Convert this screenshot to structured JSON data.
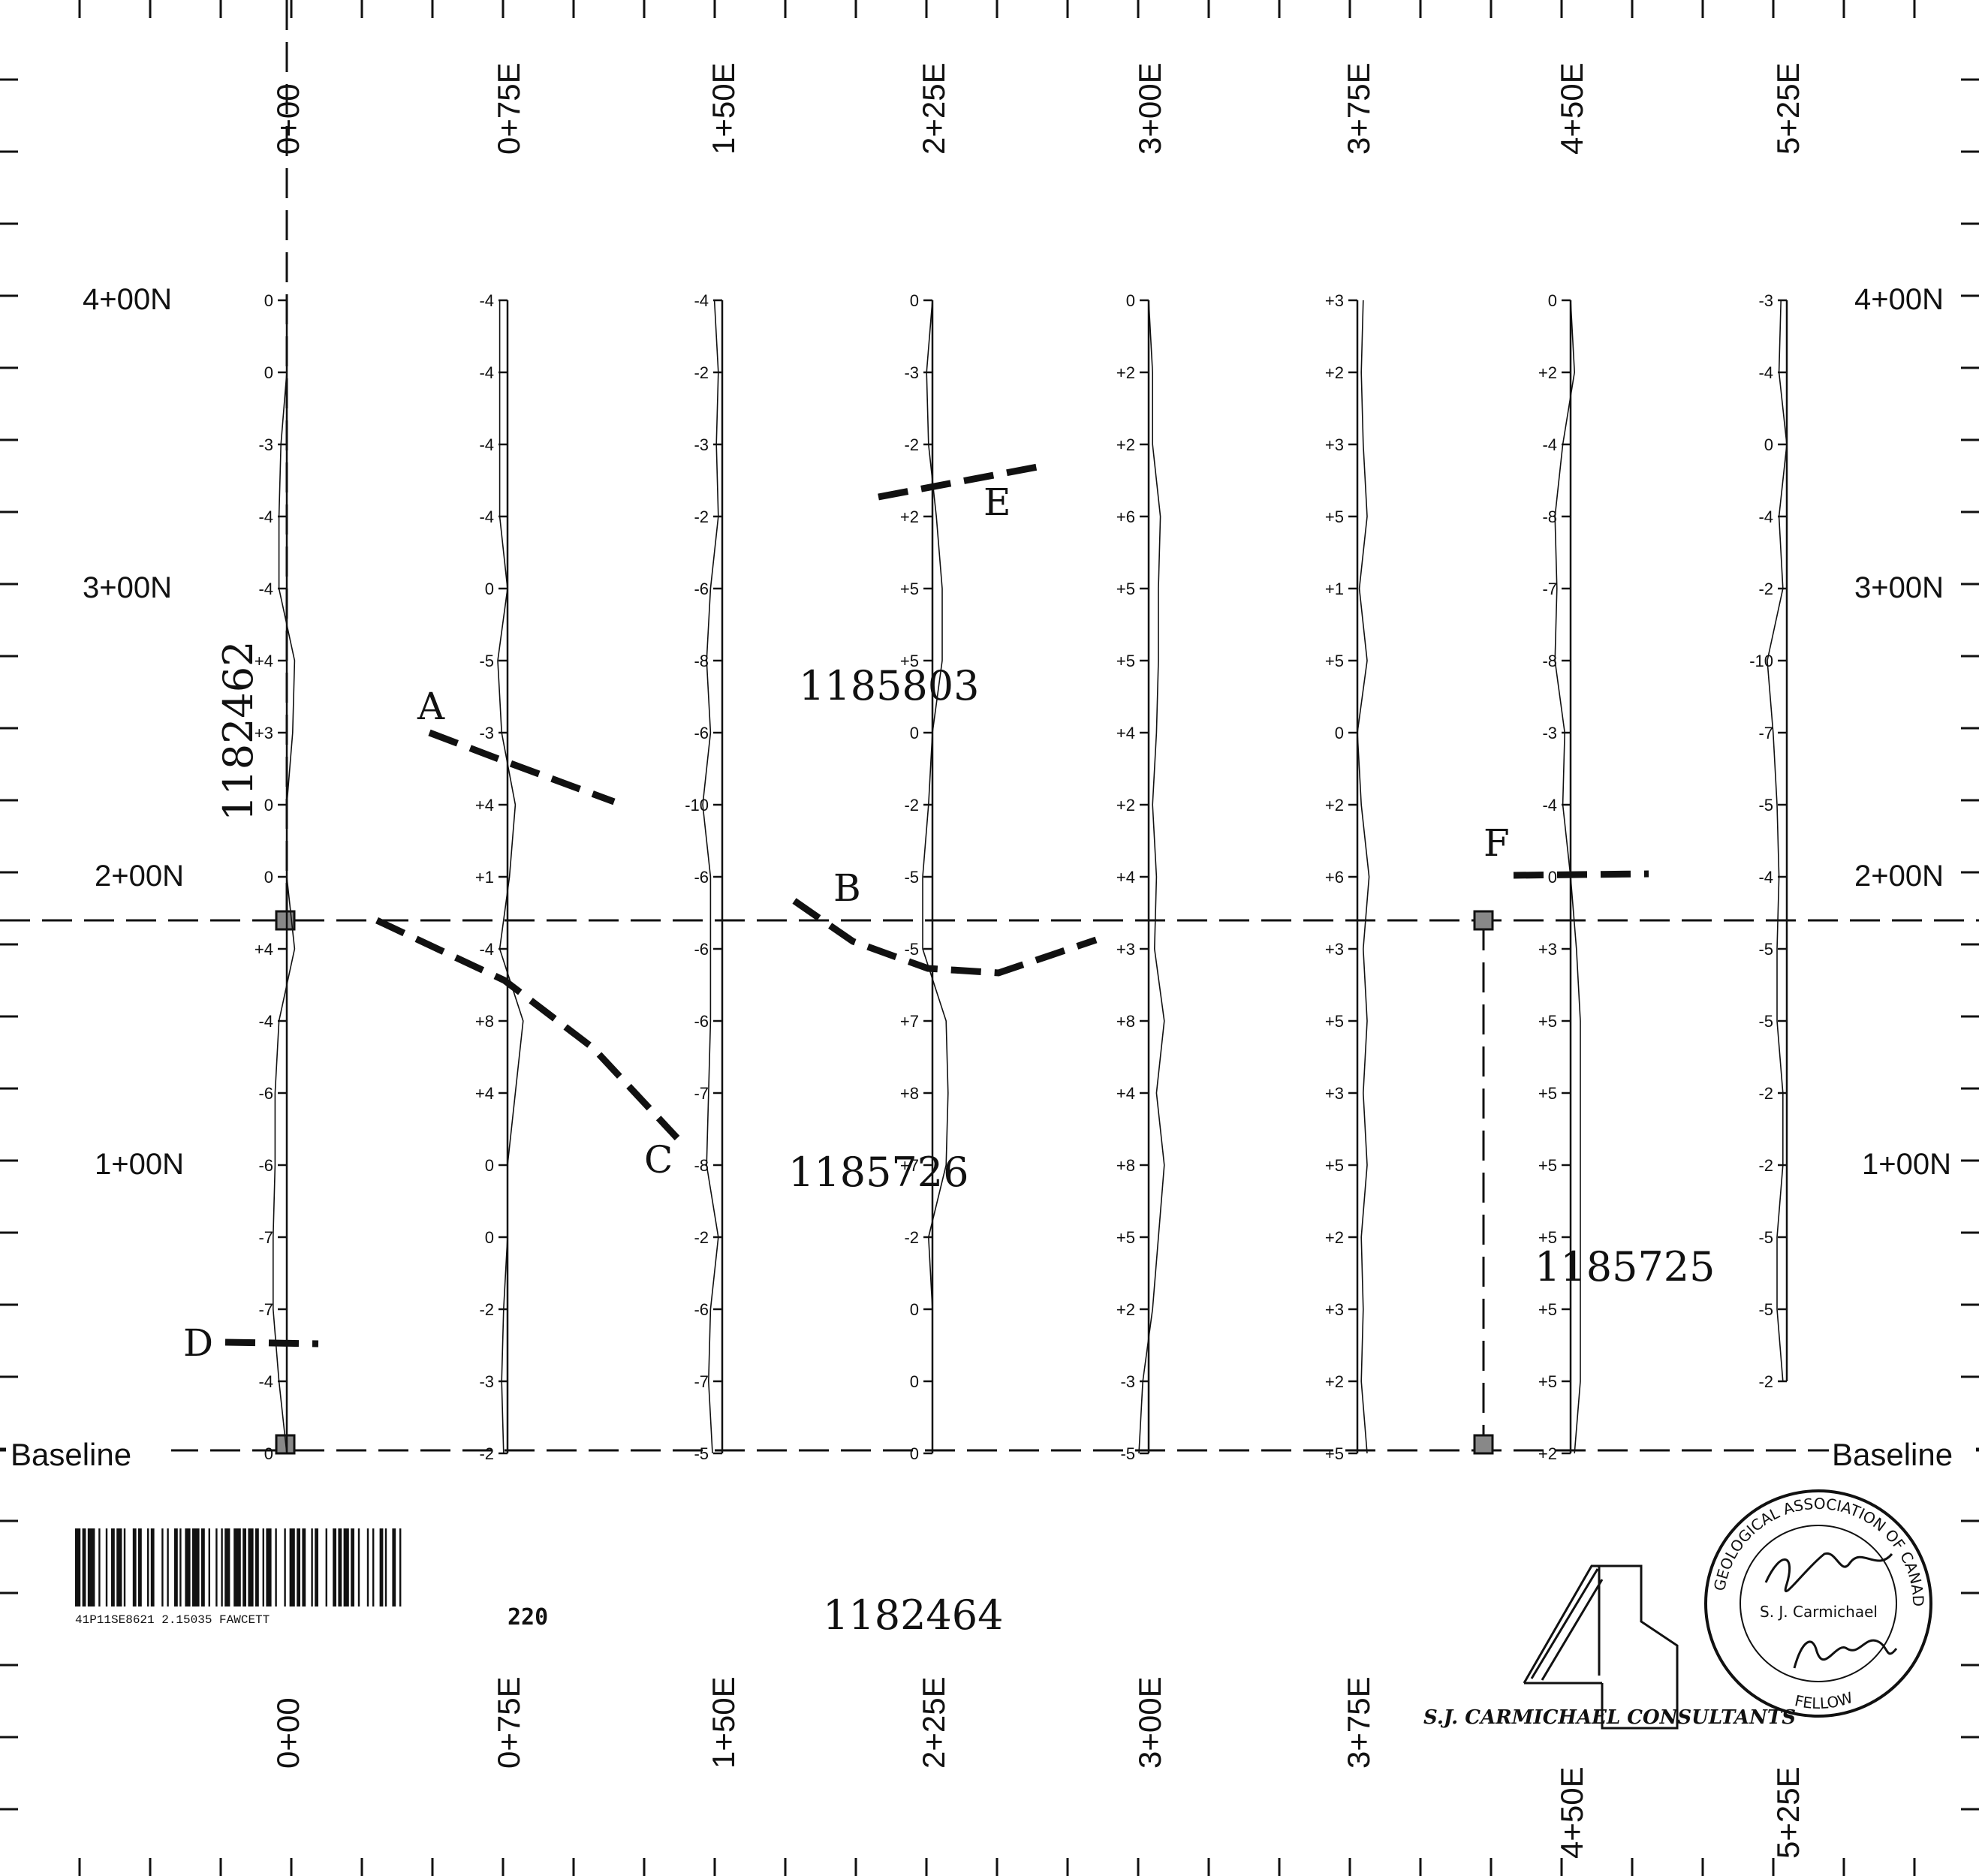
{
  "grid": {
    "lines": [
      {
        "label": "0+00",
        "values": [
          "0",
          "0",
          "-3",
          "-4",
          "-4",
          "+4",
          "+3",
          "0",
          "0",
          "+4",
          "-4",
          "-6",
          "-6",
          "-7",
          "-7",
          "-4",
          "0"
        ]
      },
      {
        "label": "0+75E",
        "values": [
          "-4",
          "-4",
          "-4",
          "-4",
          "0",
          "-5",
          "-3",
          "+4",
          "+1",
          "-4",
          "+8",
          "+4",
          "0",
          "0",
          "-2",
          "-3",
          "-2"
        ]
      },
      {
        "label": "1+50E",
        "values": [
          "-4",
          "-2",
          "-3",
          "-2",
          "-6",
          "-8",
          "-6",
          "-10",
          "-6",
          "-6",
          "-6",
          "-7",
          "-8",
          "-2",
          "-6",
          "-7",
          "-5"
        ]
      },
      {
        "label": "2+25E",
        "values": [
          "0",
          "-3",
          "-2",
          "+2",
          "+5",
          "+5",
          "0",
          "-2",
          "-5",
          "-5",
          "+7",
          "+8",
          "+7",
          "-2",
          "0",
          "0",
          "0"
        ]
      },
      {
        "label": "3+00E",
        "values": [
          "0",
          "+2",
          "+2",
          "+6",
          "+5",
          "+5",
          "+4",
          "+2",
          "+4",
          "+3",
          "+8",
          "+4",
          "+8",
          "+5",
          "+2",
          "-3",
          "-5"
        ]
      },
      {
        "label": "3+75E",
        "values": [
          "+3",
          "+2",
          "+3",
          "+5",
          "+1",
          "+5",
          "0",
          "+2",
          "+6",
          "+3",
          "+5",
          "+3",
          "+5",
          "+2",
          "+3",
          "+2",
          "+5"
        ]
      },
      {
        "label": "4+50E",
        "values": [
          "0",
          "+2",
          "-4",
          "-8",
          "-7",
          "-8",
          "-3",
          "-4",
          "0",
          "+3",
          "+5",
          "+5",
          "+5",
          "+5",
          "+5",
          "+5",
          "+2"
        ]
      },
      {
        "label": "5+25E",
        "values": [
          "-3",
          "-4",
          "0",
          "-4",
          "-2",
          "-10",
          "-7",
          "-5",
          "-4",
          "-5",
          "-5",
          "-2",
          "-2",
          "-5",
          "-5",
          "-2"
        ]
      }
    ],
    "northings_left": [
      "4+00N",
      "3+00N",
      "2+00N",
      "1+00N"
    ],
    "northings_right": [
      "4+00N",
      "3+00N",
      "2+00N",
      "1+00N"
    ],
    "baseline_left": "Baseline",
    "baseline_right": "Baseline"
  },
  "claims": {
    "west": "1182462",
    "north": "1185803",
    "center": "1185726",
    "east": "1185725",
    "south": "1182464"
  },
  "zones": [
    "A",
    "B",
    "C",
    "D",
    "E",
    "F"
  ],
  "footer": {
    "barcode_text": "41P11SE8621 2.15035 FAWCETT",
    "sheet_number": "220",
    "consultant": "S.J. CARMICHAEL CONSULTANTS",
    "seal_ring": "GEOLOGICAL ASSOCIATION OF CANADA",
    "seal_fellow": "FELLOW",
    "seal_name": "S. J. Carmichael"
  },
  "colors": {
    "ink": "#111111",
    "paper": "#ffffff"
  }
}
